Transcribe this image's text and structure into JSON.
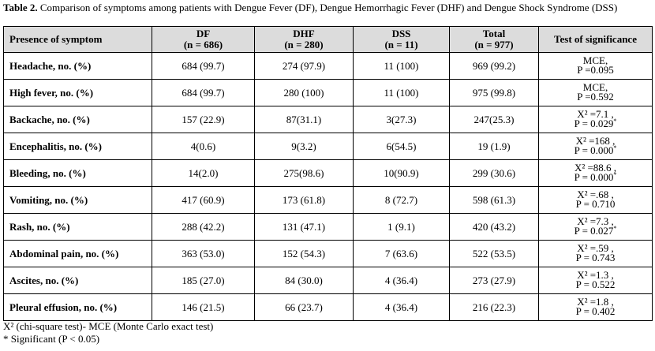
{
  "caption": {
    "label": "Table 2.",
    "text": " Comparison of symptoms among patients with Dengue Fever (DF), Dengue Hemorrhagic Fever (DHF) and Dengue Shock Syndrome (DSS)"
  },
  "header": {
    "symptom": "Presence of symptom",
    "df": "DF",
    "df_n": "(n = 686)",
    "dhf": "DHF",
    "dhf_n": "(n = 280)",
    "dss": "DSS",
    "dss_n": "(n = 11)",
    "total": "Total",
    "total_n": "(n = 977)",
    "test": "Test of significance"
  },
  "rows": [
    {
      "symptom": "Headache, no. (%)",
      "df": "684 (99.7)",
      "dhf": "274 (97.9)",
      "dss": "11 (100)",
      "total": "969 (99.2)",
      "test1": "MCE,",
      "test2": "P =0.095",
      "test_sig": ""
    },
    {
      "symptom": "High fever, no. (%)",
      "df": "684 (99.7)",
      "dhf": "280 (100)",
      "dss": "11 (100)",
      "total": "975 (99.8)",
      "test1": "MCE,",
      "test2": "P =0.592",
      "test_sig": ""
    },
    {
      "symptom": "Backache, no. (%)",
      "df": "157 (22.9)",
      "dhf": "87(31.1)",
      "dss": "3(27.3)",
      "total": "247(25.3)",
      "test1": "X² =7.1 ,",
      "test2": "P = 0.029",
      "test_sig": "*"
    },
    {
      "symptom": "Encephalitis, no. (%)",
      "df": "4(0.6)",
      "dhf": "9(3.2)",
      "dss": "6(54.5)",
      "total": "19 (1.9)",
      "test1": "X² =168 ,",
      "test2": "P = 0.000",
      "test_sig": "*"
    },
    {
      "symptom": "Bleeding, no. (%)",
      "df": "14(2.0)",
      "dhf": "275(98.6)",
      "dss": "10(90.9)",
      "total": "299 (30.6)",
      "test1": "X² =88.6 ,",
      "test2": "P = 0.000",
      "test_sig": "*"
    },
    {
      "symptom": "Vomiting, no. (%)",
      "df": "417 (60.9)",
      "dhf": "173 (61.8)",
      "dss": "8 (72.7)",
      "total": "598 (61.3)",
      "test1": "X² =.68 ,",
      "test2": "P = 0.710",
      "test_sig": ""
    },
    {
      "symptom": "Rash, no. (%)",
      "df": "288 (42.2)",
      "dhf": "131 (47.1)",
      "dss": "1 (9.1)",
      "total": "420 (43.2)",
      "test1": "X² =7.3 ,",
      "test2": "P = 0.027",
      "test_sig": "*"
    },
    {
      "symptom": "Abdominal pain, no. (%)",
      "df": "363 (53.0)",
      "dhf": "152 (54.3)",
      "dss": "7 (63.6)",
      "total": "522 (53.5)",
      "test1": "X² =.59 ,",
      "test2": "P = 0.743",
      "test_sig": ""
    },
    {
      "symptom": "Ascites, no. (%)",
      "df": "185 (27.0)",
      "dhf": "84 (30.0)",
      "dss": "4 (36.4)",
      "total": "273 (27.9)",
      "test1": "X² =1.3 ,",
      "test2": "P = 0.522",
      "test_sig": ""
    },
    {
      "symptom": "Pleural effusion, no. (%)",
      "df": "146 (21.5)",
      "dhf": "66 (23.7)",
      "dss": "4 (36.4)",
      "total": "216 (22.3)",
      "test1": "X² =1.8 ,",
      "test2": "P = 0.402",
      "test_sig": ""
    }
  ],
  "footnotes": {
    "line1": "X² (chi-square test)- MCE (Monte Carlo exact test)",
    "line2": "* Significant (P < 0.05)"
  },
  "colors": {
    "header_bg": "#dcdcdc",
    "border": "#000000"
  }
}
